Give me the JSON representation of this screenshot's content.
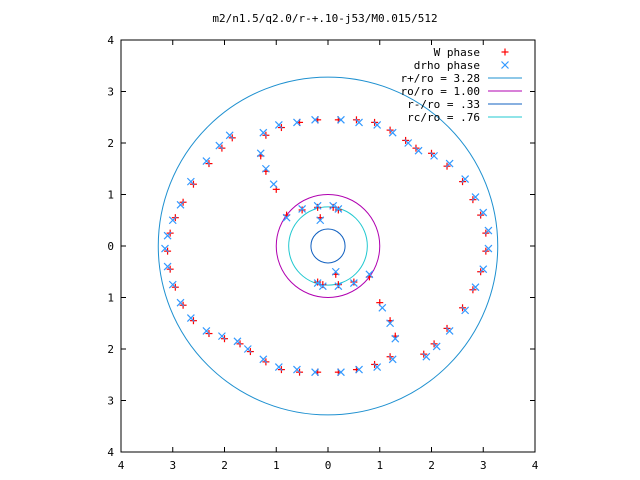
{
  "chart_data": {
    "type": "scatter",
    "title": "m2/n1.5/q2.0/r-+.10-j53/M0.015/512",
    "xlabel": "",
    "ylabel": "",
    "xlim": [
      -4,
      4
    ],
    "ylim": [
      -4,
      4
    ],
    "x_tick_values": [
      -4,
      -3,
      -2,
      -1,
      0,
      1,
      2,
      3,
      4
    ],
    "x_tick_labels": [
      "4",
      "3",
      "2",
      "1",
      "0",
      "1",
      "2",
      "3",
      "4"
    ],
    "y_tick_values": [
      -4,
      -3,
      -2,
      -1,
      0,
      1,
      2,
      3,
      4
    ],
    "y_tick_labels": [
      "4",
      "3",
      "2",
      "1",
      "0",
      "1",
      "2",
      "3",
      "4"
    ],
    "grid": false,
    "legend_position": "top-right",
    "series": [
      {
        "name": "W phase",
        "marker": "plus",
        "color": "#ff0000",
        "points": [
          [
            -1.85,
            2.1
          ],
          [
            -2.05,
            1.9
          ],
          [
            -2.3,
            1.6
          ],
          [
            -2.6,
            1.2
          ],
          [
            -2.8,
            0.85
          ],
          [
            -2.95,
            0.55
          ],
          [
            -3.05,
            0.25
          ],
          [
            -3.1,
            -0.1
          ],
          [
            -3.05,
            -0.45
          ],
          [
            -2.95,
            -0.8
          ],
          [
            -2.8,
            -1.15
          ],
          [
            -2.6,
            -1.45
          ],
          [
            -2.3,
            -1.7
          ],
          [
            -2.0,
            -1.8
          ],
          [
            -1.7,
            -1.9
          ],
          [
            -1.5,
            -2.05
          ],
          [
            -1.2,
            -2.25
          ],
          [
            -0.9,
            -2.4
          ],
          [
            -0.55,
            -2.45
          ],
          [
            -0.2,
            -2.45
          ],
          [
            0.2,
            -2.45
          ],
          [
            0.55,
            -2.4
          ],
          [
            0.9,
            -2.3
          ],
          [
            1.2,
            -2.15
          ],
          [
            1.85,
            -2.1
          ],
          [
            2.05,
            -1.9
          ],
          [
            2.3,
            -1.6
          ],
          [
            2.6,
            -1.2
          ],
          [
            2.8,
            -0.85
          ],
          [
            2.95,
            -0.5
          ],
          [
            3.05,
            -0.1
          ],
          [
            3.05,
            0.25
          ],
          [
            2.95,
            0.6
          ],
          [
            2.8,
            0.9
          ],
          [
            2.6,
            1.25
          ],
          [
            2.3,
            1.55
          ],
          [
            2.0,
            1.8
          ],
          [
            1.7,
            1.9
          ],
          [
            1.5,
            2.05
          ],
          [
            1.2,
            2.25
          ],
          [
            0.9,
            2.4
          ],
          [
            0.55,
            2.45
          ],
          [
            0.2,
            2.45
          ],
          [
            -0.2,
            2.45
          ],
          [
            -0.55,
            2.4
          ],
          [
            -0.9,
            2.3
          ],
          [
            -1.2,
            2.15
          ],
          [
            -1.3,
            1.75
          ],
          [
            -1.2,
            1.45
          ],
          [
            -1.0,
            1.1
          ],
          [
            -0.8,
            0.6
          ],
          [
            -0.5,
            0.7
          ],
          [
            -0.2,
            0.75
          ],
          [
            0.1,
            0.75
          ],
          [
            0.2,
            0.7
          ],
          [
            -0.15,
            0.55
          ],
          [
            1.3,
            -1.75
          ],
          [
            1.2,
            -1.45
          ],
          [
            1.0,
            -1.1
          ],
          [
            0.8,
            -0.6
          ],
          [
            0.5,
            -0.7
          ],
          [
            0.2,
            -0.75
          ],
          [
            -0.1,
            -0.75
          ],
          [
            -0.2,
            -0.7
          ],
          [
            0.15,
            -0.55
          ]
        ]
      },
      {
        "name": "drho phase",
        "marker": "cross",
        "color": "#3399ff",
        "points": [
          [
            -1.9,
            2.15
          ],
          [
            -2.1,
            1.95
          ],
          [
            -2.35,
            1.65
          ],
          [
            -2.65,
            1.25
          ],
          [
            -2.85,
            0.8
          ],
          [
            -3.0,
            0.5
          ],
          [
            -3.1,
            0.2
          ],
          [
            -3.15,
            -0.05
          ],
          [
            -3.1,
            -0.4
          ],
          [
            -3.0,
            -0.75
          ],
          [
            -2.85,
            -1.1
          ],
          [
            -2.65,
            -1.4
          ],
          [
            -2.35,
            -1.65
          ],
          [
            -2.05,
            -1.75
          ],
          [
            -1.75,
            -1.85
          ],
          [
            -1.55,
            -2.0
          ],
          [
            -1.25,
            -2.2
          ],
          [
            -0.95,
            -2.35
          ],
          [
            -0.6,
            -2.4
          ],
          [
            -0.25,
            -2.45
          ],
          [
            0.25,
            -2.45
          ],
          [
            0.6,
            -2.4
          ],
          [
            0.95,
            -2.35
          ],
          [
            1.25,
            -2.2
          ],
          [
            1.9,
            -2.15
          ],
          [
            2.1,
            -1.95
          ],
          [
            2.35,
            -1.65
          ],
          [
            2.65,
            -1.25
          ],
          [
            2.85,
            -0.8
          ],
          [
            3.0,
            -0.45
          ],
          [
            3.1,
            -0.05
          ],
          [
            3.1,
            0.3
          ],
          [
            3.0,
            0.65
          ],
          [
            2.85,
            0.95
          ],
          [
            2.65,
            1.3
          ],
          [
            2.35,
            1.6
          ],
          [
            2.05,
            1.75
          ],
          [
            1.75,
            1.85
          ],
          [
            1.55,
            2.0
          ],
          [
            1.25,
            2.2
          ],
          [
            0.95,
            2.35
          ],
          [
            0.6,
            2.4
          ],
          [
            0.25,
            2.45
          ],
          [
            -0.25,
            2.45
          ],
          [
            -0.6,
            2.4
          ],
          [
            -0.95,
            2.35
          ],
          [
            -1.25,
            2.2
          ],
          [
            -1.3,
            1.8
          ],
          [
            -1.2,
            1.5
          ],
          [
            -1.05,
            1.2
          ],
          [
            -0.8,
            0.55
          ],
          [
            -0.5,
            0.72
          ],
          [
            -0.2,
            0.78
          ],
          [
            0.1,
            0.78
          ],
          [
            0.2,
            0.72
          ],
          [
            -0.15,
            0.5
          ],
          [
            1.3,
            -1.8
          ],
          [
            1.2,
            -1.5
          ],
          [
            1.05,
            -1.2
          ],
          [
            0.8,
            -0.55
          ],
          [
            0.5,
            -0.72
          ],
          [
            0.2,
            -0.78
          ],
          [
            -0.1,
            -0.78
          ],
          [
            -0.2,
            -0.72
          ],
          [
            0.15,
            -0.5
          ]
        ]
      },
      {
        "name": "r+/ro = 3.28",
        "type": "circle",
        "radius": 3.28,
        "color": "#1e90d0"
      },
      {
        "name": "ro/ro = 1.00",
        "type": "circle",
        "radius": 1.0,
        "color": "#b000b0"
      },
      {
        "name": "r-/ro = .33",
        "type": "circle",
        "radius": 0.33,
        "color": "#1060c0"
      },
      {
        "name": "rc/ro = .76",
        "type": "circle",
        "radius": 0.76,
        "color": "#20c8d0"
      }
    ]
  }
}
